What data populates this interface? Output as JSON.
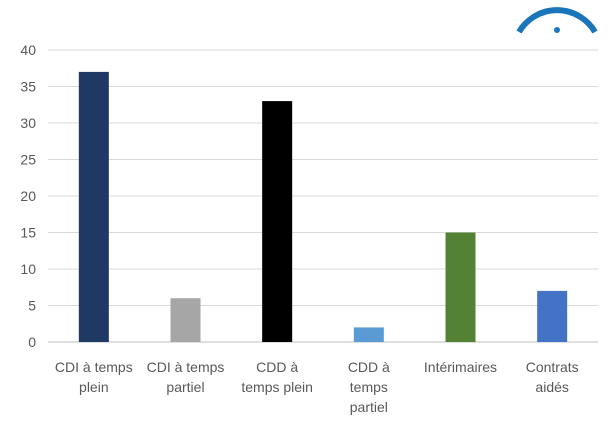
{
  "chart_data": {
    "type": "bar",
    "categories": [
      [
        "CDI à temps",
        "plein"
      ],
      [
        "CDI à temps",
        "partiel"
      ],
      [
        "CDD à",
        "temps plein"
      ],
      [
        "CDD à",
        "temps",
        "partiel"
      ],
      [
        "Intérimaires"
      ],
      [
        "Contrats",
        "aidés"
      ]
    ],
    "values": [
      37,
      6,
      33,
      2,
      15,
      7
    ],
    "colors": [
      "#203864",
      "#a6a6a6",
      "#000000",
      "#5b9bd5",
      "#548235",
      "#4472c4"
    ],
    "ylim": [
      0,
      40
    ],
    "yticks": [
      0,
      5,
      10,
      15,
      20,
      25,
      30,
      35,
      40
    ],
    "grid": true,
    "title": "",
    "xlabel": "",
    "ylabel": ""
  },
  "decoration": {
    "icon_name": "circle-arc-logo-icon",
    "icon_color": "#1a75bb"
  }
}
